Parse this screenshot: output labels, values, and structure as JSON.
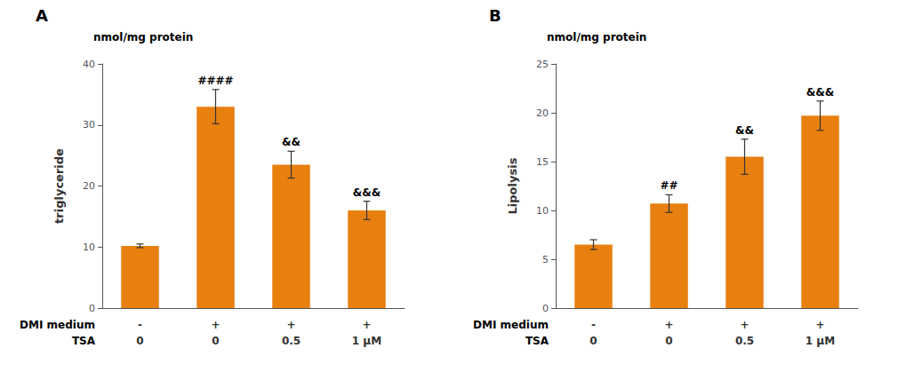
{
  "chart_data": [
    {
      "type": "bar",
      "title": "A",
      "subtitle": "nmol/mg protein",
      "ylabel": "triglyceride",
      "xlabel": [
        "DMI medium",
        "TSA"
      ],
      "categories": [
        [
          "-",
          "0"
        ],
        [
          "+",
          "0"
        ],
        [
          "+",
          "0.5"
        ],
        [
          "+",
          "1 μM"
        ]
      ],
      "values": [
        10.2,
        33.0,
        23.5,
        16.0
      ],
      "errors": [
        0.3,
        2.8,
        2.2,
        1.5
      ],
      "annotations": [
        null,
        "####",
        "&&",
        "&&&"
      ],
      "color": "#E88010",
      "ylim": [
        0,
        40
      ],
      "yticks": [
        0,
        10,
        20,
        30,
        40
      ],
      "grid": false
    },
    {
      "type": "bar",
      "title": "B",
      "subtitle": "nmol/mg protein",
      "ylabel": "Lipolysis",
      "xlabel": [
        "DMI medium",
        "TSA"
      ],
      "categories": [
        [
          "-",
          "0"
        ],
        [
          "+",
          "0"
        ],
        [
          "+",
          "0.5"
        ],
        [
          "+",
          "1 μM"
        ]
      ],
      "values": [
        6.5,
        10.7,
        15.5,
        19.7
      ],
      "errors": [
        0.5,
        0.9,
        1.8,
        1.5
      ],
      "annotations": [
        null,
        "##",
        "&&",
        "&&&"
      ],
      "color": "#E88010",
      "ylim": [
        0,
        25
      ],
      "yticks": [
        0,
        5,
        10,
        15,
        20,
        25
      ],
      "grid": false
    }
  ]
}
